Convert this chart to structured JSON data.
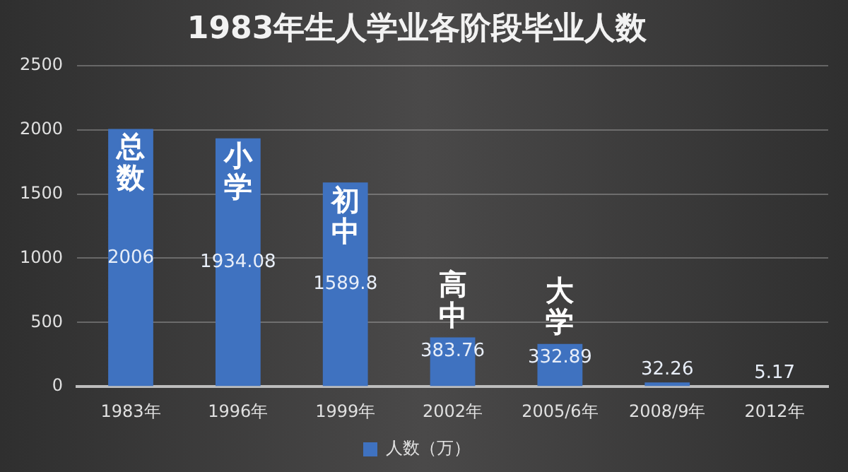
{
  "chart_data": {
    "type": "bar",
    "title": "1983年生人学业各阶段毕业人数",
    "categories": [
      "1983年",
      "1996年",
      "1999年",
      "2002年",
      "2005/6年",
      "2008/9年",
      "2012年"
    ],
    "series": [
      {
        "name": "人数（万）",
        "color": "#3f72c0",
        "values": [
          2006,
          1934.08,
          1589.8,
          383.76,
          332.89,
          32.26,
          5.17
        ]
      }
    ],
    "ylim": [
      0,
      2500
    ],
    "yticks": [
      0,
      500,
      1000,
      1500,
      2000,
      2500
    ],
    "grid": "y",
    "legend": "bottom",
    "data_labels": true,
    "annotations": [
      {
        "text": "总数",
        "x": "1983年",
        "y": 2006
      },
      {
        "text": "小学",
        "x": "1996年",
        "y": 1934.08
      },
      {
        "text": "初中",
        "x": "1999年",
        "y": 1589.8
      },
      {
        "text": "高中",
        "x": "2002年",
        "y": 383.76
      },
      {
        "text": "大学",
        "x": "2005/6年",
        "y": 332.89
      }
    ]
  }
}
